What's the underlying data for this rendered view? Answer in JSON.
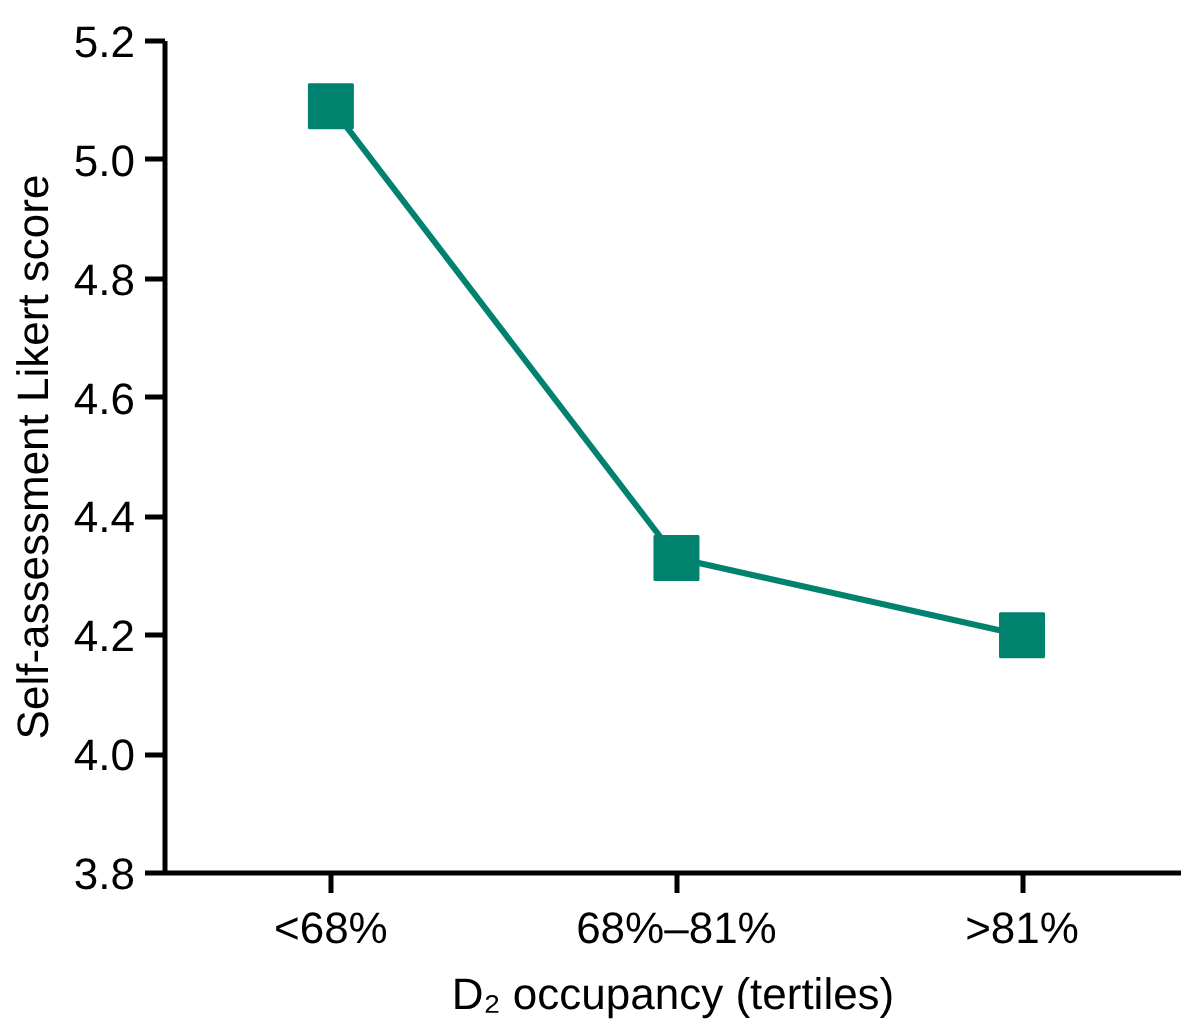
{
  "chart_data": {
    "type": "line",
    "xlabel": "D₂ occupancy (tertiles)",
    "ylabel": "Self-assessment Likert score",
    "categories": [
      "<68%",
      "68%–81%",
      ">81%"
    ],
    "series": [
      {
        "color": "#00826f",
        "values": [
          5.09,
          4.33,
          4.2
        ]
      }
    ],
    "ylim": [
      3.8,
      5.2
    ],
    "yticks": [
      3.8,
      {
        "value": 4.0,
        "label": "4.0"
      },
      4.2,
      4.4,
      4.6,
      4.8,
      {
        "value": 5.0,
        "label": "5.0"
      },
      5.2
    ],
    "marker": "square",
    "line_style": "solid",
    "grid": false
  }
}
